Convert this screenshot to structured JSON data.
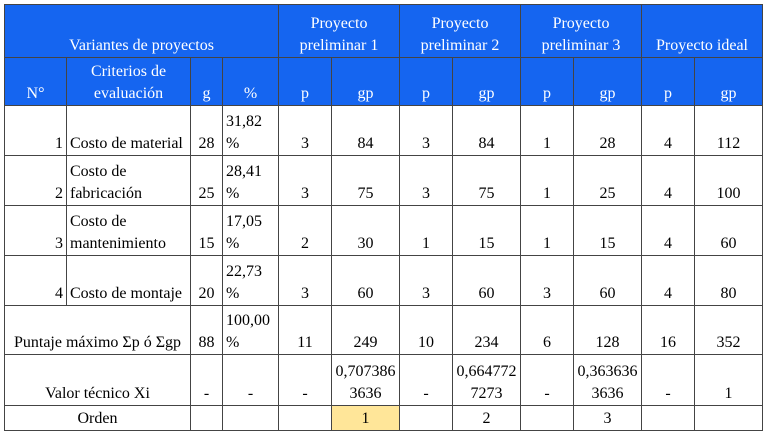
{
  "header": {
    "variants_label": "Variantes de proyectos",
    "projects": [
      "Proyecto preliminar 1",
      "Proyecto preliminar 2",
      "Proyecto preliminar 3",
      "Proyecto ideal"
    ],
    "col_num": "N°",
    "col_criteria": "Criterios de evaluación",
    "col_g": "g",
    "col_pct": "%",
    "col_p": "p",
    "col_gp": "gp"
  },
  "rows": [
    {
      "n": "1",
      "criterion": "Costo de material",
      "g": "28",
      "pct": "31,82 %",
      "cells": [
        "3",
        "84",
        "3",
        "84",
        "1",
        "28",
        "4",
        "112"
      ]
    },
    {
      "n": "2",
      "criterion": "Costo de fabricación",
      "g": "25",
      "pct": "28,41 %",
      "cells": [
        "3",
        "75",
        "3",
        "75",
        "1",
        "25",
        "4",
        "100"
      ]
    },
    {
      "n": "3",
      "criterion": "Costo de mantenimiento",
      "g": "15",
      "pct": "17,05 %",
      "cells": [
        "2",
        "30",
        "1",
        "15",
        "1",
        "15",
        "4",
        "60"
      ]
    },
    {
      "n": "4",
      "criterion": "Costo de montaje",
      "g": "20",
      "pct": "22,73 %",
      "cells": [
        "3",
        "60",
        "3",
        "60",
        "3",
        "60",
        "4",
        "80"
      ]
    }
  ],
  "total": {
    "label": "Puntaje máximo Σp ó Σgp",
    "g": "88",
    "pct": "100,00 %",
    "cells": [
      "11",
      "249",
      "10",
      "234",
      "6",
      "128",
      "16",
      "352"
    ]
  },
  "valor": {
    "label": "Valor técnico Xi",
    "cells": [
      "-",
      "-",
      "-",
      "0,7073863636",
      "-",
      "0,6647727273",
      "-",
      "0,3636363636",
      "-",
      "1"
    ]
  },
  "orden": {
    "label": "Orden",
    "values": [
      "1",
      "2",
      "3"
    ]
  },
  "colors": {
    "header_bg": "#1565f0",
    "highlight": "#ffe699"
  }
}
